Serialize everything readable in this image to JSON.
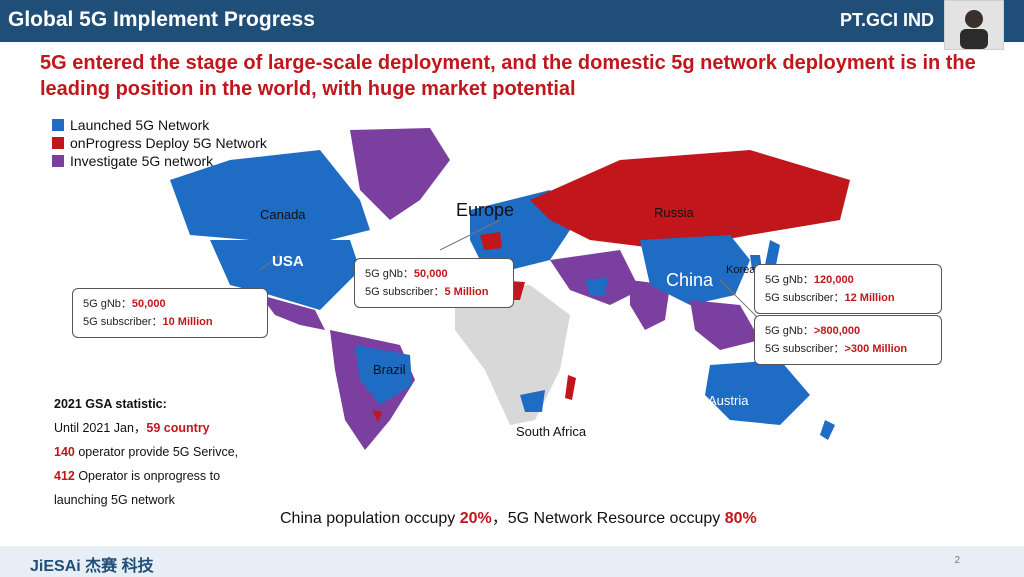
{
  "header": {
    "title": "Global 5G Implement Progress",
    "brand": "PT.GCI IND"
  },
  "headline": "5G entered the stage of large-scale deployment, and the domestic 5g network deployment is in the leading position in the world, with huge market potential",
  "legend": [
    {
      "label": "Launched 5G Network",
      "color": "#1f6cc4"
    },
    {
      "label": "onProgress Deploy 5G Network",
      "color": "#c0161c"
    },
    {
      "label": "Investigate 5G network",
      "color": "#7b3fa0"
    }
  ],
  "map_labels": {
    "canada": "Canada",
    "usa": "USA",
    "europe": "Europe",
    "russia": "Russia",
    "china": "China",
    "korea": "Korea",
    "brazil": "Brazil",
    "south_africa": "South Africa",
    "austria": "Austria"
  },
  "callouts": {
    "usa": {
      "gnb_label": "5G gNb：",
      "gnb_value": "50,000",
      "sub_label": "5G subscriber：",
      "sub_value": "10 Million"
    },
    "europe": {
      "gnb_label": "5G gNb：",
      "gnb_value": "50,000",
      "sub_label": "5G subscriber：",
      "sub_value": "5 Million"
    },
    "korea": {
      "gnb_label": "5G gNb：",
      "gnb_value": "120,000",
      "sub_label": "5G subscriber：",
      "sub_value": "12 Million"
    },
    "china": {
      "gnb_label": "5G gNb：",
      "gnb_value": ">800,000",
      "sub_label": "5G subscriber：",
      "sub_value": ">300 Million"
    }
  },
  "stats": {
    "title": "2021 GSA statistic:",
    "line1_pre": "Until 2021 Jan，",
    "line1_num": "59 country",
    "line2_num": "140",
    "line2_post": " operator provide 5G Serivce,",
    "line3_num": "412",
    "line3_post": " Operator is onprogress to",
    "line4": "launching 5G network"
  },
  "bottom": {
    "pre": "China population occupy ",
    "pct1": "20%",
    "mid": "，5G Network Resource occupy ",
    "pct2": "80%"
  },
  "footer": {
    "logo": "JiESAi 杰赛 科技",
    "page": "2"
  }
}
